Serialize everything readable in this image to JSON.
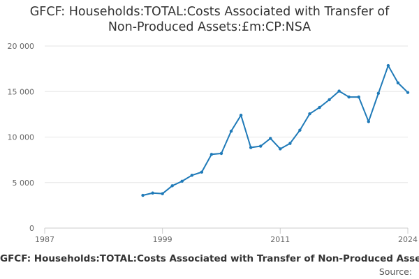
{
  "title_line1": "GFCF: Households:TOTAL:Costs Associated with Transfer of",
  "title_line2": "Non-Produced Assets:£m:CP:NSA",
  "legend_text": "GFCF: Households:TOTAL:Costs Associated with Transfer of Non-Produced Assets:£m:CP:NSA",
  "source_label": "Source:",
  "colors": {
    "line": "#1f7ab8",
    "grid": "#e6e6e6",
    "axis": "#cccccc"
  },
  "chart_data": {
    "type": "line",
    "title": "GFCF: Households:TOTAL:Costs Associated with Transfer of Non-Produced Assets:£m:CP:NSA",
    "xlabel": "",
    "ylabel": "",
    "xlim": [
      1987,
      2024
    ],
    "ylim": [
      0,
      20000
    ],
    "x_ticks": [
      1987,
      1999,
      2011,
      2024
    ],
    "x_tick_labels": [
      "1987",
      "1999",
      "2011",
      "2024"
    ],
    "y_ticks": [
      0,
      5000,
      10000,
      15000,
      20000
    ],
    "y_tick_labels": [
      "0",
      "5 000",
      "10 000",
      "15 000",
      "20 000"
    ],
    "grid": "horizontal",
    "legend": "bottom",
    "series": [
      {
        "name": "GFCF: Households:TOTAL:Costs Associated with Transfer of Non-Produced Assets:£m:CP:NSA",
        "x": [
          1997,
          1998,
          1999,
          2000,
          2001,
          2002,
          2003,
          2004,
          2005,
          2006,
          2007,
          2008,
          2009,
          2010,
          2011,
          2012,
          2013,
          2014,
          2015,
          2016,
          2017,
          2018,
          2019,
          2020,
          2021,
          2022,
          2023,
          2024
        ],
        "values": [
          3600,
          3850,
          3780,
          4650,
          5150,
          5800,
          6150,
          8100,
          8200,
          10650,
          12400,
          8850,
          9000,
          9850,
          8700,
          9300,
          10750,
          12550,
          13250,
          14100,
          15050,
          14400,
          14400,
          11700,
          14800,
          17850,
          15950,
          14900
        ]
      }
    ]
  }
}
